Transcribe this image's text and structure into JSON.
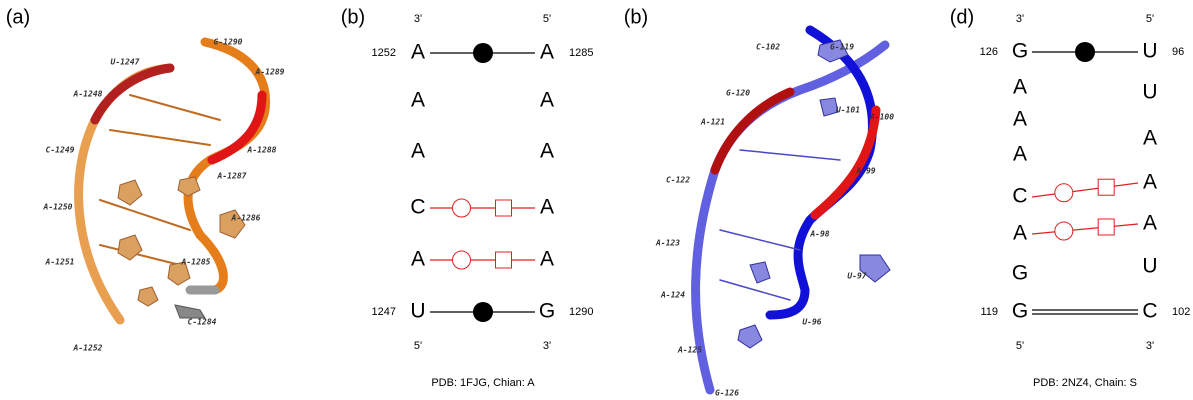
{
  "panel_a": {
    "label": "(a)",
    "residues": [
      "G-1290",
      "U-1247",
      "A-1289",
      "A-1248",
      "C-1249",
      "A-1288",
      "A-1287",
      "A-1250",
      "A-1286",
      "A-1251",
      "A-1285",
      "A-1252",
      "C-1284"
    ]
  },
  "panel_b": {
    "label": "(b)",
    "top_left": "3'",
    "top_right": "5'",
    "left_start": "1252",
    "right_start": "1285",
    "left_end": "1247",
    "right_end": "1290",
    "bottom_left": "5'",
    "bottom_right": "3'",
    "left_bases": [
      "A",
      "A",
      "A",
      "C",
      "A",
      "U"
    ],
    "right_bases": [
      "A",
      "A",
      "A",
      "A",
      "A",
      "G"
    ],
    "caption": "PDB: 1FJG, Chian: A"
  },
  "panel_c": {
    "label": "(b)",
    "residues": [
      "C-102",
      "G-119",
      "G-120",
      "U-101",
      "A-100",
      "A-121",
      "C-122",
      "A-99",
      "A-98",
      "A-123",
      "U-97",
      "A-124",
      "U-96",
      "A-125",
      "G-126"
    ]
  },
  "panel_d": {
    "label": "(d)",
    "top_left": "3'",
    "top_right": "5'",
    "left_start": "126",
    "right_start": "96",
    "left_end": "119",
    "right_end": "102",
    "bottom_left": "5'",
    "bottom_right": "3'",
    "left_bases": [
      "G",
      "A",
      "A",
      "A",
      "C",
      "A",
      "G",
      "G"
    ],
    "right_bases": [
      "U",
      "U",
      "A",
      "A",
      "A",
      "U",
      "C"
    ],
    "caption": "PDB: 2NZ4, Chain: S"
  }
}
